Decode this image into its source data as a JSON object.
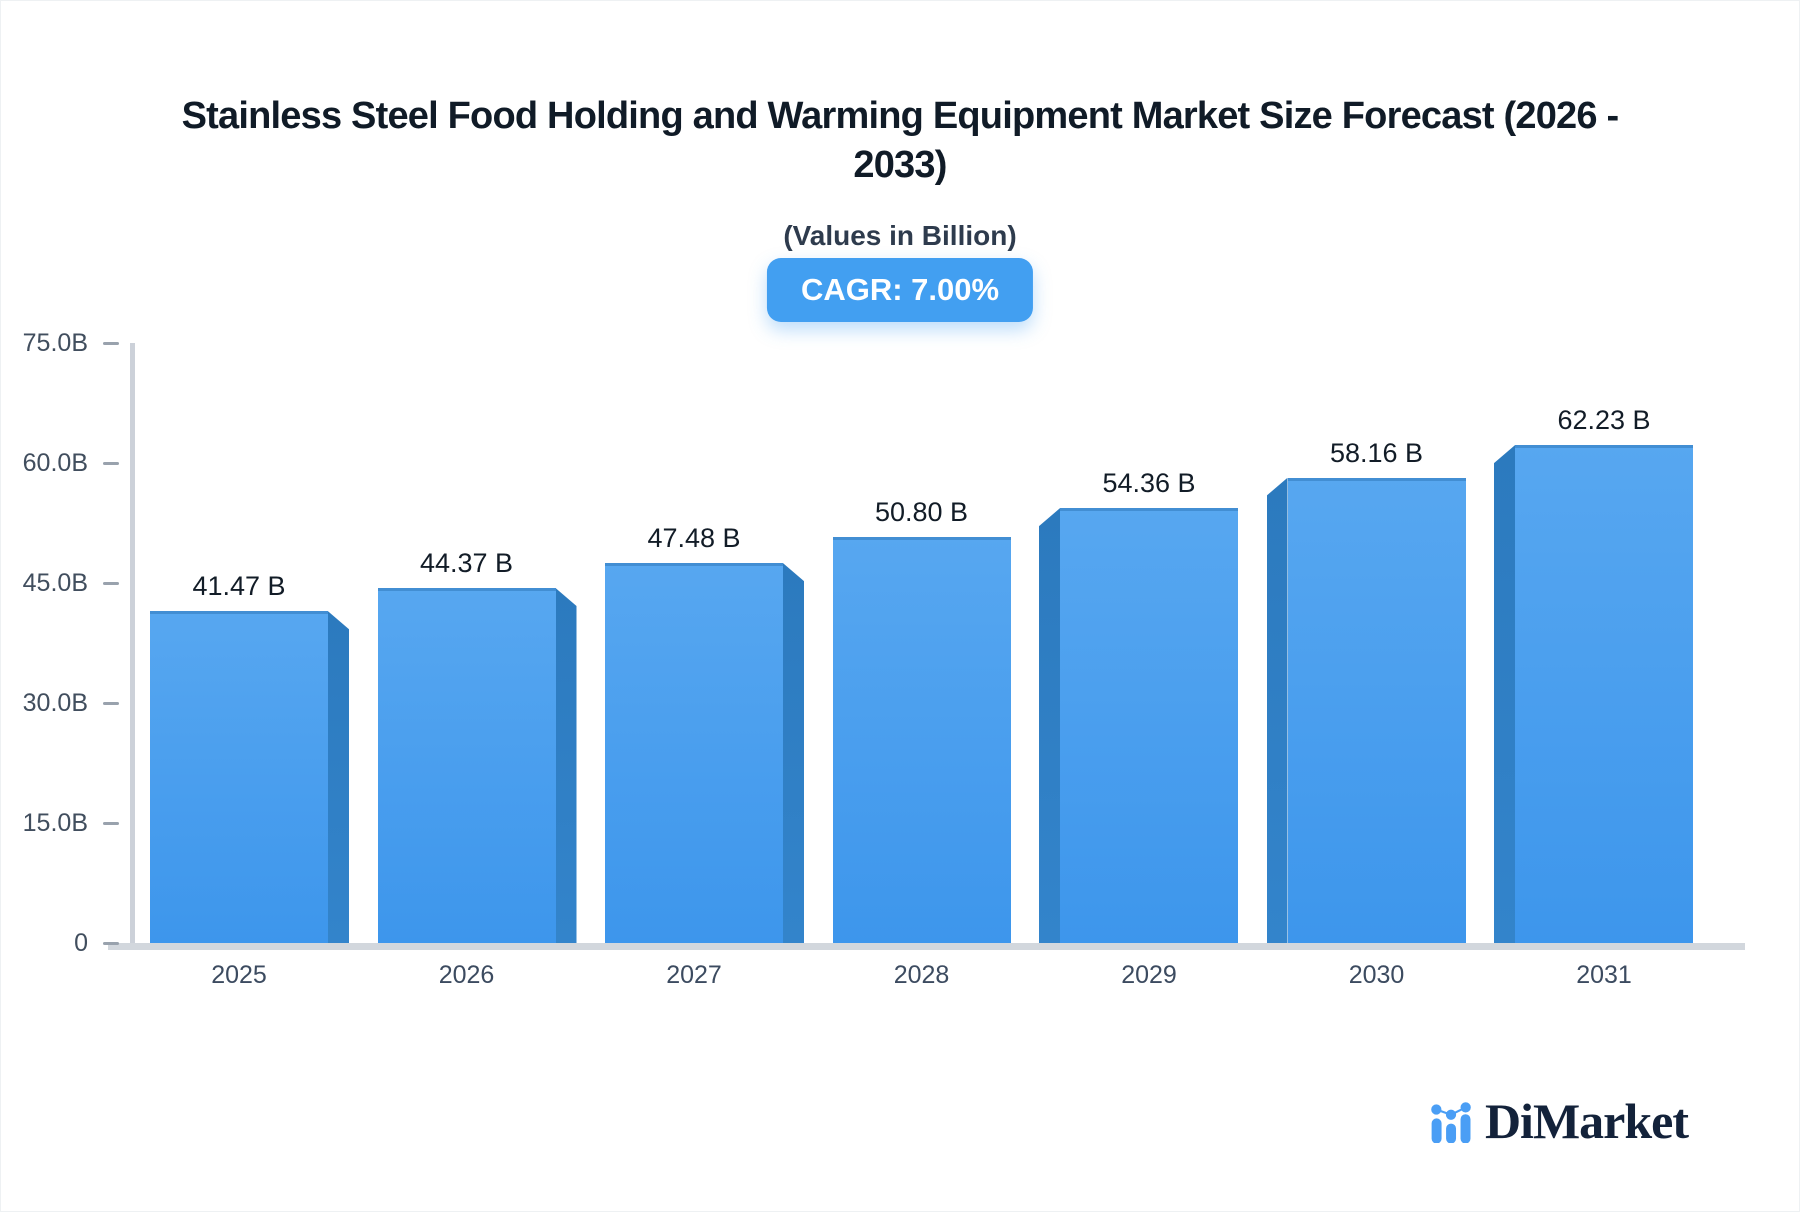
{
  "title": {
    "line1": "Stainless Steel Food Holding and Warming Equipment Market Size Forecast (2026 -",
    "line2": "2033)"
  },
  "subtitle": "(Values in Billion)",
  "badge": {
    "label": "CAGR: 7.00%",
    "bg_color": "#429ff1",
    "text_color": "#ffffff"
  },
  "chart_data": {
    "type": "bar",
    "title": "Stainless Steel Food Holding and Warming Equipment Market Size Forecast (2026 - 2033)",
    "subtitle": "(Values in Billion)",
    "annotation": "CAGR: 7.00%",
    "categories": [
      "2025",
      "2026",
      "2027",
      "2028",
      "2029",
      "2030",
      "2031"
    ],
    "values": [
      41.47,
      44.37,
      47.48,
      50.8,
      54.36,
      58.16,
      62.23
    ],
    "value_labels": [
      "41.47 B",
      "44.37 B",
      "47.48 B",
      "50.80 B",
      "54.36 B",
      "58.16 B",
      "62.23 B"
    ],
    "xlabel": "",
    "ylabel": "",
    "ylim": [
      0,
      75
    ],
    "yticks": [
      {
        "label": "75.0B",
        "value": 75
      },
      {
        "label": "60.0B",
        "value": 60
      },
      {
        "label": "45.0B",
        "value": 45
      },
      {
        "label": "30.0B",
        "value": 30
      },
      {
        "label": "15.0B",
        "value": 15
      },
      {
        "label": "0",
        "value": 0
      }
    ],
    "grid": false,
    "legend": false,
    "style": "pseudo-3d-perspective-bars",
    "colors": {
      "bar_face_top": "#57a7f0",
      "bar_face_bottom": "#3d96ec",
      "bar_face_edge": "rgba(28, 96, 158, 0.35)",
      "bar_side_top": "#2c7abe",
      "bar_side_bottom": "#3384cb",
      "axis_line": "#ccd1d9",
      "baseline": "#d2d7dd",
      "tick_dash": "#99a2ad",
      "tick_text": "#414e5e",
      "year_text": "#3c4b60",
      "value_text": "#121c27"
    }
  },
  "logo": {
    "text": "DiMarket",
    "icon": "bar-chart-dots-logo-icon",
    "icon_color": "#4a9ef5",
    "text_color": "#13223a"
  }
}
